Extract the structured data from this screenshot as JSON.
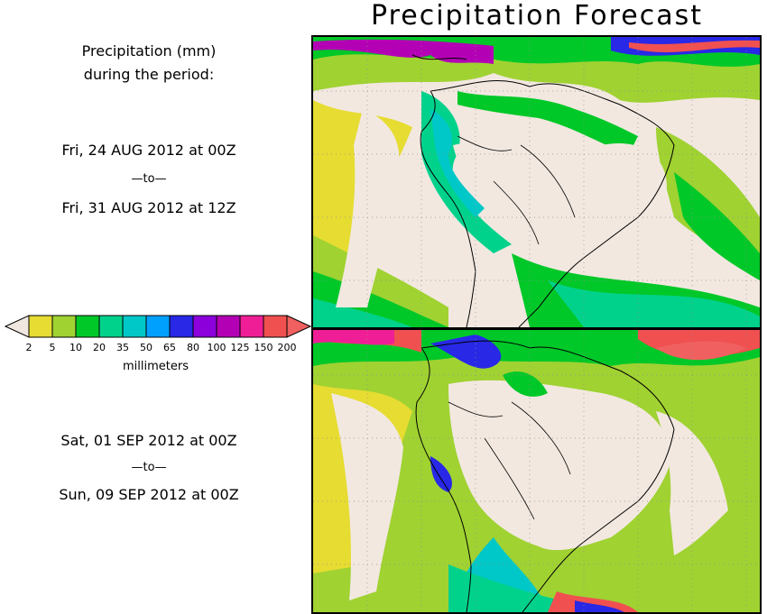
{
  "title": "Precipitation Forecast",
  "legend_header": {
    "line1": "Precipitation (mm)",
    "line2": "during the period:"
  },
  "period1": {
    "start": "Fri, 24 AUG 2012 at 00Z",
    "sep": "—to—",
    "end": "Fri, 31 AUG 2012 at 12Z"
  },
  "period2": {
    "start": "Sat, 01 SEP 2012 at 00Z",
    "sep": "—to—",
    "end": "Sun, 09 SEP 2012 at 00Z"
  },
  "colorbar": {
    "ticks": [
      "2",
      "5",
      "10",
      "20",
      "35",
      "50",
      "65",
      "80",
      "100",
      "125",
      "150",
      "200"
    ],
    "unit": "millimeters",
    "colors": [
      "#f0e8e0",
      "#e6dc32",
      "#a0d232",
      "#00c828",
      "#00d28c",
      "#00c8c8",
      "#00a0ff",
      "#2828e6",
      "#8c00dc",
      "#b400b4",
      "#f01e96",
      "#f05050",
      "#f06060"
    ]
  },
  "map_colors": {
    "land_dry": "#f2e8e0",
    "yellow": "#e6dc32",
    "light_green": "#a0d232",
    "green": "#00c828",
    "teal": "#00d28c",
    "cyan": "#00c8c8",
    "blue": "#00a0ff",
    "dark_blue": "#2828e6",
    "purple": "#8c00dc",
    "magenta": "#b400b4",
    "pink": "#f01e96",
    "red": "#f05050",
    "coastline": "#000000",
    "gridline": "#909090"
  }
}
